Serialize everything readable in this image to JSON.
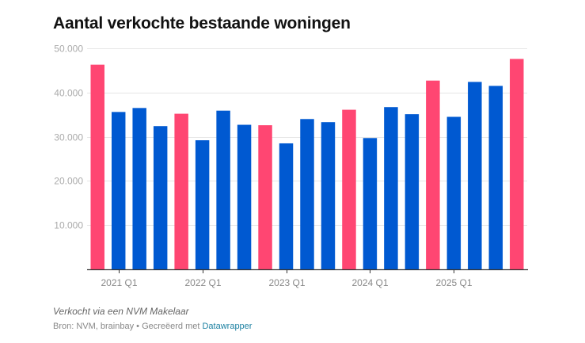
{
  "header": {
    "title": "Aantal verkochte bestaande woningen"
  },
  "footer": {
    "notes": "Verkocht via een NVM Makelaar",
    "source_prefix": "Bron: NVM, brainbay • Gecreëerd met ",
    "source_link": "Datawrapper"
  },
  "colors": {
    "q4": "#ff4672",
    "other": "#0059d1",
    "grid": "#e6e6e6",
    "axis": "#333333"
  },
  "chart_data": {
    "type": "bar",
    "title": "Aantal verkochte bestaande woningen",
    "xlabel": "",
    "ylabel": "",
    "ylim": [
      0,
      50000
    ],
    "grid": true,
    "y_ticks": [
      {
        "value": 10000,
        "label": "10.000"
      },
      {
        "value": 20000,
        "label": "20.000"
      },
      {
        "value": 30000,
        "label": "30.000"
      },
      {
        "value": 40000,
        "label": "40.000"
      },
      {
        "value": 50000,
        "label": "50.000"
      }
    ],
    "x_tick_labels": [
      {
        "category": "2021 Q1",
        "label": "2021 Q1"
      },
      {
        "category": "2022 Q1",
        "label": "2022 Q1"
      },
      {
        "category": "2023 Q1",
        "label": "2023 Q1"
      },
      {
        "category": "2024 Q1",
        "label": "2024 Q1"
      },
      {
        "category": "2025 Q1",
        "label": "2025 Q1"
      }
    ],
    "categories": [
      "2020 Q4",
      "2021 Q1",
      "2021 Q2",
      "2021 Q3",
      "2021 Q4",
      "2022 Q1",
      "2022 Q2",
      "2022 Q3",
      "2022 Q4",
      "2023 Q1",
      "2023 Q2",
      "2023 Q3",
      "2023 Q4",
      "2024 Q1",
      "2024 Q2",
      "2024 Q3",
      "2024 Q4",
      "2025 Q1",
      "2025 Q2",
      "2025 Q3",
      "2025 Q4"
    ],
    "values": [
      46300,
      35600,
      36500,
      32400,
      35200,
      29200,
      35900,
      32700,
      32600,
      28500,
      34000,
      33300,
      36100,
      29700,
      36700,
      35100,
      42700,
      34500,
      42400,
      41500,
      47600
    ],
    "highlight": "Q4 quarters shown in pink, other quarters in blue"
  }
}
